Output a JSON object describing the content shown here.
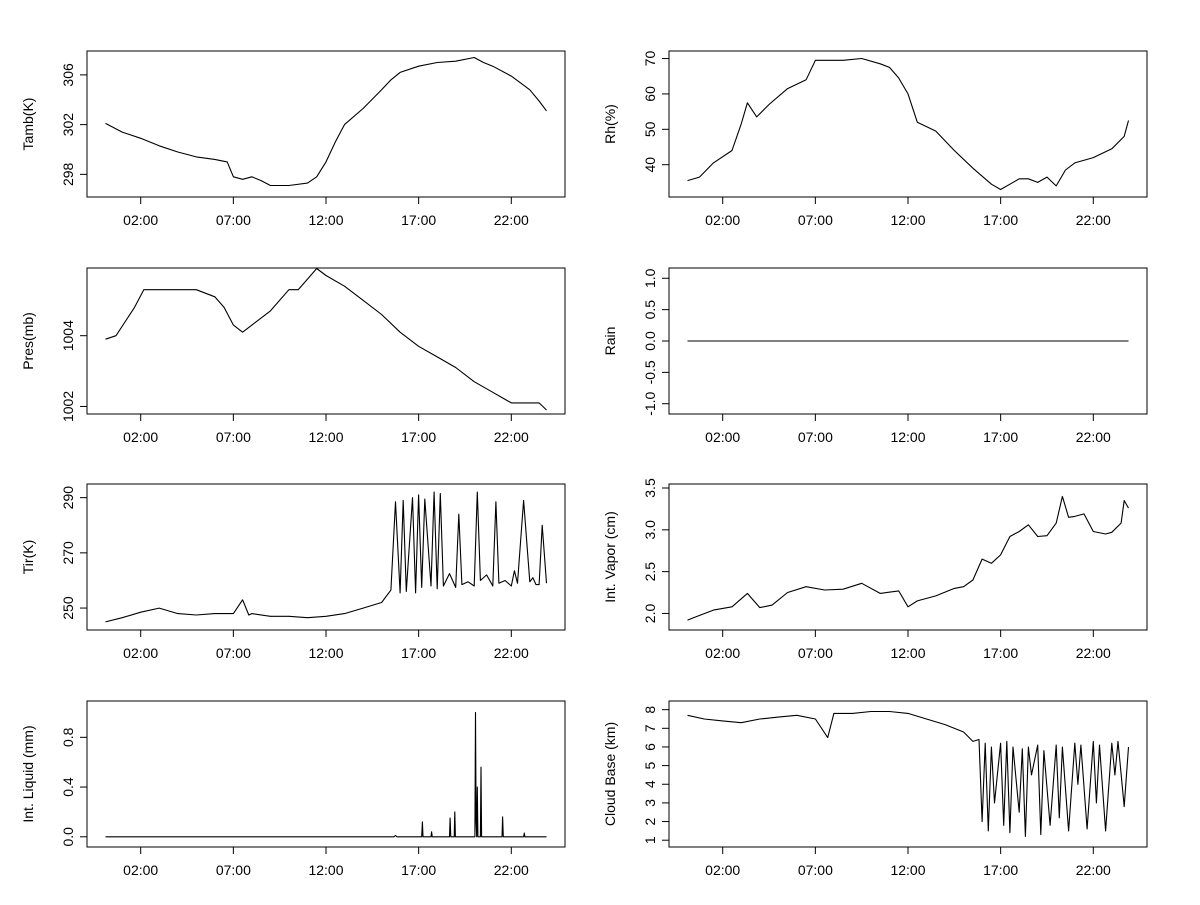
{
  "x_ticks": [
    "02:00",
    "07:00",
    "12:00",
    "17:00",
    "22:00"
  ],
  "chart_data": [
    {
      "type": "line",
      "ylabel": "Tamb(K)",
      "x_range": [
        "00:06",
        "23:54"
      ],
      "ylim": [
        296.5,
        307.6
      ],
      "yticks": [
        "298",
        "302",
        "306"
      ],
      "xticks": [
        "02:00",
        "07:00",
        "12:00",
        "17:00",
        "22:00"
      ],
      "series": [
        {
          "x": [
            "00:06",
            "01:00",
            "02:00",
            "03:00",
            "04:00",
            "05:00",
            "06:00",
            "06:40",
            "07:00",
            "07:30",
            "08:00",
            "08:30",
            "09:00",
            "10:00",
            "11:00",
            "11:30",
            "12:00",
            "12:30",
            "13:00",
            "14:00",
            "15:00",
            "15:30",
            "16:00",
            "17:00",
            "18:00",
            "19:00",
            "20:00",
            "20:30",
            "21:00",
            "22:00",
            "23:00",
            "23:30",
            "23:54"
          ],
          "y": [
            302.1,
            301.4,
            300.9,
            300.3,
            299.8,
            299.4,
            299.2,
            299.0,
            297.8,
            297.6,
            297.8,
            297.5,
            297.1,
            297.1,
            297.3,
            297.8,
            299.0,
            300.6,
            302.0,
            303.3,
            304.8,
            305.6,
            306.2,
            306.7,
            307.0,
            307.1,
            307.4,
            307.0,
            306.7,
            305.9,
            304.8,
            303.9,
            303.1
          ]
        }
      ]
    },
    {
      "type": "line",
      "ylabel": "Rh(%)",
      "x_range": [
        "00:06",
        "23:54"
      ],
      "ylim": [
        32,
        71
      ],
      "yticks": [
        "40",
        "50",
        "60",
        "70"
      ],
      "xticks": [
        "02:00",
        "07:00",
        "12:00",
        "17:00",
        "22:00"
      ],
      "series": [
        {
          "x": [
            "00:06",
            "00:45",
            "01:30",
            "02:30",
            "03:00",
            "03:20",
            "03:50",
            "04:30",
            "05:30",
            "06:30",
            "07:00",
            "07:40",
            "08:30",
            "09:30",
            "10:30",
            "11:00",
            "11:30",
            "12:00",
            "12:30",
            "13:30",
            "14:30",
            "15:30",
            "16:30",
            "17:00",
            "17:30",
            "18:00",
            "18:30",
            "19:00",
            "19:30",
            "20:00",
            "20:30",
            "21:00",
            "22:00",
            "23:00",
            "23:40",
            "23:54"
          ],
          "y": [
            35.5,
            36.5,
            40.5,
            44.0,
            51.5,
            57.5,
            53.5,
            57.0,
            61.5,
            64.0,
            69.5,
            69.5,
            69.5,
            70.0,
            68.5,
            67.5,
            64.5,
            60.0,
            52.0,
            49.5,
            44.0,
            39.0,
            34.5,
            33.0,
            34.5,
            36.0,
            36.0,
            35.0,
            36.5,
            34.0,
            38.5,
            40.5,
            42.0,
            44.5,
            48.0,
            52.5
          ]
        }
      ]
    },
    {
      "type": "line",
      "ylabel": "Pres(mb)",
      "x_range": [
        "00:06",
        "23:54"
      ],
      "ylim": [
        1001.9,
        1005.8
      ],
      "yticks": [
        "1002",
        "1004"
      ],
      "xticks": [
        "02:00",
        "07:00",
        "12:00",
        "17:00",
        "22:00"
      ],
      "series": [
        {
          "x": [
            "00:06",
            "00:40",
            "01:10",
            "01:40",
            "02:10",
            "03:00",
            "04:00",
            "05:00",
            "06:00",
            "06:30",
            "07:00",
            "07:30",
            "08:00",
            "09:00",
            "10:00",
            "10:30",
            "11:00",
            "11:30",
            "12:00",
            "13:00",
            "14:00",
            "15:00",
            "16:00",
            "17:00",
            "18:00",
            "19:00",
            "20:00",
            "21:00",
            "21:40",
            "22:00",
            "23:00",
            "23:30",
            "23:54"
          ],
          "y": [
            1003.9,
            1004.0,
            1004.4,
            1004.8,
            1005.3,
            1005.3,
            1005.3,
            1005.3,
            1005.1,
            1004.8,
            1004.3,
            1004.1,
            1004.3,
            1004.7,
            1005.3,
            1005.3,
            1005.6,
            1005.9,
            1005.7,
            1005.4,
            1005.0,
            1004.6,
            1004.1,
            1003.7,
            1003.4,
            1003.1,
            1002.7,
            1002.4,
            1002.2,
            1002.1,
            1002.1,
            1002.1,
            1001.9
          ]
        }
      ]
    },
    {
      "type": "line",
      "ylabel": "Rain",
      "x_range": [
        "00:06",
        "23:54"
      ],
      "ylim": [
        -1.1,
        1.1
      ],
      "yticks": [
        "-1.0",
        "-0.5",
        "0.0",
        "0.5",
        "1.0"
      ],
      "xticks": [
        "02:00",
        "07:00",
        "12:00",
        "17:00",
        "22:00"
      ],
      "series": [
        {
          "x": [
            "00:06",
            "23:54"
          ],
          "y": [
            0.0,
            0.0
          ]
        }
      ]
    },
    {
      "type": "line",
      "ylabel": "Tir(K)",
      "x_range": [
        "00:06",
        "23:54"
      ],
      "ylim": [
        243.5,
        293.5
      ],
      "yticks": [
        "250",
        "270",
        "290"
      ],
      "xticks": [
        "02:00",
        "07:00",
        "12:00",
        "17:00",
        "22:00"
      ],
      "series": [
        {
          "x": [
            "00:06",
            "01:00",
            "02:00",
            "03:00",
            "04:00",
            "05:00",
            "06:00",
            "07:00",
            "07:30",
            "07:50",
            "08:00",
            "09:00",
            "10:00",
            "11:00",
            "12:00",
            "13:00",
            "14:00",
            "15:00",
            "15:30",
            "15:45",
            "16:00",
            "16:10",
            "16:20",
            "16:40",
            "16:50",
            "17:00",
            "17:10",
            "17:20",
            "17:40",
            "17:50",
            "18:00",
            "18:10",
            "18:20",
            "18:40",
            "19:00",
            "19:10",
            "19:20",
            "19:40",
            "20:00",
            "20:10",
            "20:20",
            "20:40",
            "21:00",
            "21:10",
            "21:20",
            "21:40",
            "22:00",
            "22:10",
            "22:20",
            "22:40",
            "23:00",
            "23:10",
            "23:20",
            "23:30",
            "23:40",
            "23:54"
          ],
          "y": [
            245.0,
            246.5,
            248.5,
            250.0,
            248.0,
            247.5,
            248.0,
            248.0,
            253.0,
            247.5,
            248.0,
            247.0,
            247.0,
            246.5,
            247.0,
            248.0,
            250.0,
            252.0,
            256.5,
            288.5,
            255.5,
            289.0,
            256.0,
            290.0,
            255.5,
            291.0,
            257.5,
            289.5,
            258.0,
            292.0,
            257.0,
            291.5,
            258.0,
            262.5,
            257.5,
            284.0,
            258.5,
            259.5,
            258.0,
            292.0,
            260.0,
            262.0,
            258.0,
            288.5,
            259.0,
            260.0,
            258.0,
            263.5,
            259.0,
            289.0,
            259.5,
            261.0,
            258.5,
            258.5,
            280.0,
            259.0
          ]
        }
      ]
    },
    {
      "type": "line",
      "ylabel": "Int. Vapor (cm)",
      "x_range": [
        "00:06",
        "23:54"
      ],
      "ylim": [
        1.85,
        3.5
      ],
      "yticks": [
        "2.0",
        "2.5",
        "3.0",
        "3.5"
      ],
      "xticks": [
        "02:00",
        "07:00",
        "12:00",
        "17:00",
        "22:00"
      ],
      "series": [
        {
          "x": [
            "00:06",
            "00:40",
            "01:30",
            "02:30",
            "03:20",
            "04:00",
            "04:40",
            "05:30",
            "06:30",
            "07:30",
            "08:30",
            "09:30",
            "10:30",
            "11:30",
            "12:00",
            "12:30",
            "13:30",
            "14:30",
            "15:00",
            "15:30",
            "16:00",
            "16:30",
            "17:00",
            "17:30",
            "18:00",
            "18:30",
            "19:00",
            "19:30",
            "20:00",
            "20:20",
            "20:40",
            "21:00",
            "21:30",
            "22:00",
            "22:40",
            "23:00",
            "23:30",
            "23:40",
            "23:54"
          ],
          "y": [
            1.92,
            1.97,
            2.04,
            2.08,
            2.24,
            2.07,
            2.1,
            2.25,
            2.32,
            2.28,
            2.29,
            2.36,
            2.24,
            2.27,
            2.08,
            2.15,
            2.21,
            2.3,
            2.32,
            2.4,
            2.65,
            2.6,
            2.7,
            2.92,
            2.98,
            3.06,
            2.92,
            2.93,
            3.08,
            3.4,
            3.15,
            3.16,
            3.19,
            2.98,
            2.95,
            2.97,
            3.08,
            3.35,
            3.26
          ]
        }
      ]
    },
    {
      "type": "line",
      "ylabel": "Int. Liquid (mm)",
      "x_range": [
        "00:06",
        "23:54"
      ],
      "ylim": [
        -0.05,
        1.06
      ],
      "yticks": [
        "0.0",
        "0.4",
        "0.8"
      ],
      "xticks": [
        "02:00",
        "07:00",
        "12:00",
        "17:00",
        "22:00"
      ],
      "series": [
        {
          "x": [
            "00:06",
            "15:40",
            "15:45",
            "15:50",
            "17:10",
            "17:12",
            "17:14",
            "17:40",
            "17:42",
            "17:44",
            "18:40",
            "18:42",
            "18:44",
            "18:55",
            "18:57",
            "18:59",
            "20:02",
            "20:04",
            "20:06",
            "20:08",
            "20:10",
            "20:12",
            "20:20",
            "20:22",
            "20:24",
            "21:30",
            "21:32",
            "21:34",
            "22:40",
            "22:42",
            "22:44",
            "23:54"
          ],
          "y": [
            0,
            0,
            0.01,
            0,
            0,
            0.12,
            0,
            0,
            0.04,
            0,
            0,
            0.15,
            0,
            0,
            0.2,
            0,
            0,
            1.0,
            0.12,
            0,
            0.4,
            0,
            0,
            0.56,
            0,
            0,
            0.16,
            0,
            0,
            0.03,
            0,
            0
          ]
        }
      ]
    },
    {
      "type": "line",
      "ylabel": "Cloud Base (km)",
      "x_range": [
        "00:06",
        "23:54"
      ],
      "ylim": [
        0.85,
        8.25
      ],
      "yticks": [
        "1",
        "2",
        "3",
        "4",
        "5",
        "6",
        "7",
        "8"
      ],
      "xticks": [
        "02:00",
        "07:00",
        "12:00",
        "17:00",
        "22:00"
      ],
      "series": [
        {
          "x": [
            "00:06",
            "01:00",
            "02:00",
            "03:00",
            "04:00",
            "05:00",
            "06:00",
            "07:00",
            "07:40",
            "08:00",
            "09:00",
            "10:00",
            "11:00",
            "12:00",
            "13:00",
            "14:00",
            "15:00",
            "15:30",
            "15:50",
            "16:00",
            "16:10",
            "16:20",
            "16:30",
            "16:40",
            "17:00",
            "17:10",
            "17:20",
            "17:30",
            "17:40",
            "18:00",
            "18:10",
            "18:20",
            "18:30",
            "18:40",
            "19:00",
            "19:10",
            "19:20",
            "19:40",
            "20:00",
            "20:10",
            "20:20",
            "20:40",
            "21:00",
            "21:10",
            "21:20",
            "21:40",
            "22:00",
            "22:10",
            "22:20",
            "22:40",
            "23:00",
            "23:10",
            "23:20",
            "23:40",
            "23:54"
          ],
          "y": [
            7.7,
            7.5,
            7.4,
            7.3,
            7.5,
            7.6,
            7.7,
            7.5,
            6.5,
            7.8,
            7.8,
            7.9,
            7.9,
            7.8,
            7.5,
            7.2,
            6.8,
            6.3,
            6.4,
            2.0,
            6.2,
            1.5,
            6.0,
            3.0,
            6.2,
            1.8,
            6.3,
            1.4,
            6.0,
            2.5,
            5.9,
            1.2,
            6.0,
            4.5,
            6.1,
            1.3,
            5.8,
            1.8,
            6.1,
            2.2,
            6.0,
            1.5,
            6.2,
            4.0,
            6.1,
            1.6,
            6.3,
            3.0,
            6.1,
            1.5,
            6.2,
            4.5,
            6.3,
            2.8,
            6.0
          ]
        }
      ]
    }
  ]
}
